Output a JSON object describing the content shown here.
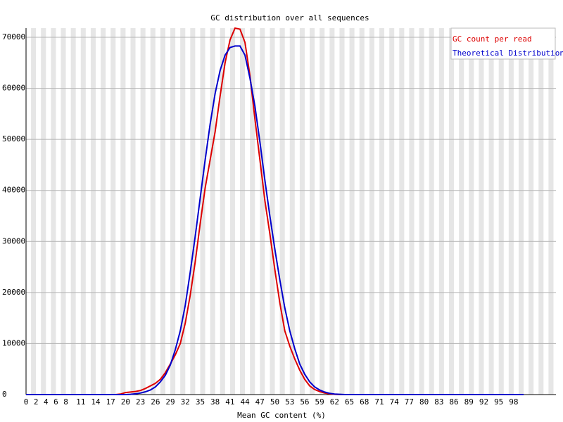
{
  "chart_data": {
    "type": "line",
    "title": "GC distribution over all sequences",
    "x_label": "Mean GC content (%)",
    "x": [
      0,
      1,
      2,
      3,
      4,
      5,
      6,
      7,
      8,
      9,
      10,
      11,
      12,
      13,
      14,
      15,
      16,
      17,
      18,
      19,
      20,
      21,
      22,
      23,
      24,
      25,
      26,
      27,
      28,
      29,
      30,
      31,
      32,
      33,
      34,
      35,
      36,
      37,
      38,
      39,
      40,
      41,
      42,
      43,
      44,
      45,
      46,
      47,
      48,
      49,
      50,
      51,
      52,
      53,
      54,
      55,
      56,
      57,
      58,
      59,
      60,
      61,
      62,
      63,
      64,
      65,
      66,
      67,
      68,
      69,
      70,
      71,
      72,
      73,
      74,
      75,
      76,
      77,
      78,
      79,
      80,
      81,
      82,
      83,
      84,
      85,
      86,
      87,
      88,
      89,
      90,
      91,
      92,
      93,
      94,
      95,
      96,
      97,
      98,
      99,
      100
    ],
    "series": [
      {
        "name": "GC count per read",
        "color": "#dd0000",
        "values": [
          0,
          0,
          0,
          0,
          0,
          0,
          0,
          0,
          0,
          0,
          0,
          0,
          0,
          0,
          0,
          0,
          0,
          0,
          0,
          100,
          400,
          500,
          600,
          800,
          1200,
          1700,
          2200,
          3000,
          4300,
          6000,
          7800,
          10000,
          14000,
          19500,
          26000,
          33500,
          40500,
          46000,
          51500,
          58500,
          65000,
          69500,
          71800,
          71600,
          69000,
          62500,
          54000,
          46000,
          38000,
          31500,
          24500,
          18000,
          12500,
          9500,
          7000,
          4800,
          3000,
          1700,
          1000,
          600,
          300,
          150,
          50,
          0,
          0,
          0,
          0,
          0,
          0,
          0,
          0,
          0,
          0,
          0,
          0,
          0,
          0,
          0,
          0,
          0,
          0,
          0,
          0,
          0,
          0,
          0,
          0,
          0,
          0,
          0,
          0,
          0,
          0,
          0,
          0,
          0,
          0,
          0,
          0,
          0,
          0
        ]
      },
      {
        "name": "Theoretical Distribution",
        "color": "#0000cc",
        "values": [
          0,
          0,
          0,
          0,
          0,
          0,
          0,
          0,
          0,
          0,
          0,
          0,
          0,
          0,
          0,
          0,
          0,
          0,
          0,
          0,
          0,
          50,
          150,
          300,
          550,
          900,
          1500,
          2500,
          3800,
          5800,
          8800,
          12500,
          17500,
          24000,
          31000,
          38500,
          46000,
          53000,
          59000,
          63500,
          66500,
          68000,
          68300,
          68300,
          66500,
          62000,
          56500,
          49500,
          42000,
          35000,
          28500,
          22500,
          17000,
          12500,
          9000,
          6000,
          4000,
          2500,
          1500,
          900,
          500,
          250,
          100,
          50,
          0,
          0,
          0,
          0,
          0,
          0,
          0,
          0,
          0,
          0,
          0,
          0,
          0,
          0,
          0,
          0,
          0,
          0,
          0,
          0,
          0,
          0,
          0,
          0,
          0,
          0,
          0,
          0,
          0,
          0,
          0,
          0,
          0,
          0,
          0,
          0,
          0
        ]
      }
    ],
    "xlim": [
      0,
      106.5
    ],
    "xticks": [
      0,
      2,
      4,
      6,
      8,
      11,
      14,
      17,
      20,
      23,
      26,
      29,
      32,
      35,
      38,
      41,
      44,
      47,
      50,
      53,
      56,
      59,
      62,
      65,
      68,
      71,
      74,
      77,
      80,
      83,
      86,
      89,
      92,
      95,
      98
    ],
    "ylim": [
      0,
      71800
    ],
    "yticks": [
      0,
      10000,
      20000,
      30000,
      40000,
      50000,
      60000,
      70000
    ],
    "grid": true,
    "legend": "top-right"
  }
}
